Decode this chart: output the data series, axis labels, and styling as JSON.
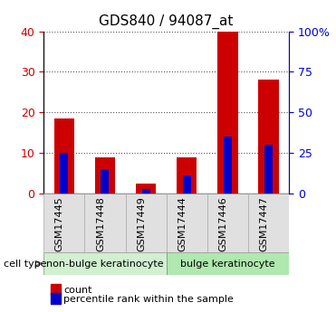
{
  "title": "GDS840 / 94087_at",
  "samples": [
    "GSM17445",
    "GSM17448",
    "GSM17449",
    "GSM17444",
    "GSM17446",
    "GSM17447"
  ],
  "count_values": [
    18.5,
    9.0,
    2.5,
    9.0,
    40.0,
    28.0
  ],
  "percentile_values": [
    10.0,
    6.0,
    1.0,
    4.5,
    14.0,
    12.0
  ],
  "groups": [
    {
      "label": "non-bulge keratinocyte",
      "samples": [
        "GSM17445",
        "GSM17448",
        "GSM17449"
      ],
      "color": "#d0f0d0"
    },
    {
      "label": "bulge keratinocyte",
      "samples": [
        "GSM17444",
        "GSM17446",
        "GSM17447"
      ],
      "color": "#b0e8b0"
    }
  ],
  "ylim_left": [
    0,
    40
  ],
  "ylim_right": [
    0,
    100
  ],
  "yticks_left": [
    0,
    10,
    20,
    30,
    40
  ],
  "yticks_right": [
    0,
    25,
    50,
    75,
    100
  ],
  "ytick_labels_right": [
    "0",
    "25",
    "50",
    "75",
    "100%"
  ],
  "bar_color_red": "#cc0000",
  "bar_color_blue": "#0000cc",
  "bar_width": 0.5,
  "tick_label_color_left": "#cc0000",
  "tick_label_color_right": "#0000cc",
  "xlabel": "",
  "ylabel_left": "",
  "ylabel_right": "",
  "legend_count_label": "count",
  "legend_percentile_label": "percentile rank within the sample",
  "cell_type_label": "cell type",
  "bg_color_axes": "#f0f0f0",
  "bg_color_plot": "#ffffff",
  "group_label_colors": [
    "#d0f0d0",
    "#b0e8b0"
  ],
  "dotted_grid_color": "#555555"
}
